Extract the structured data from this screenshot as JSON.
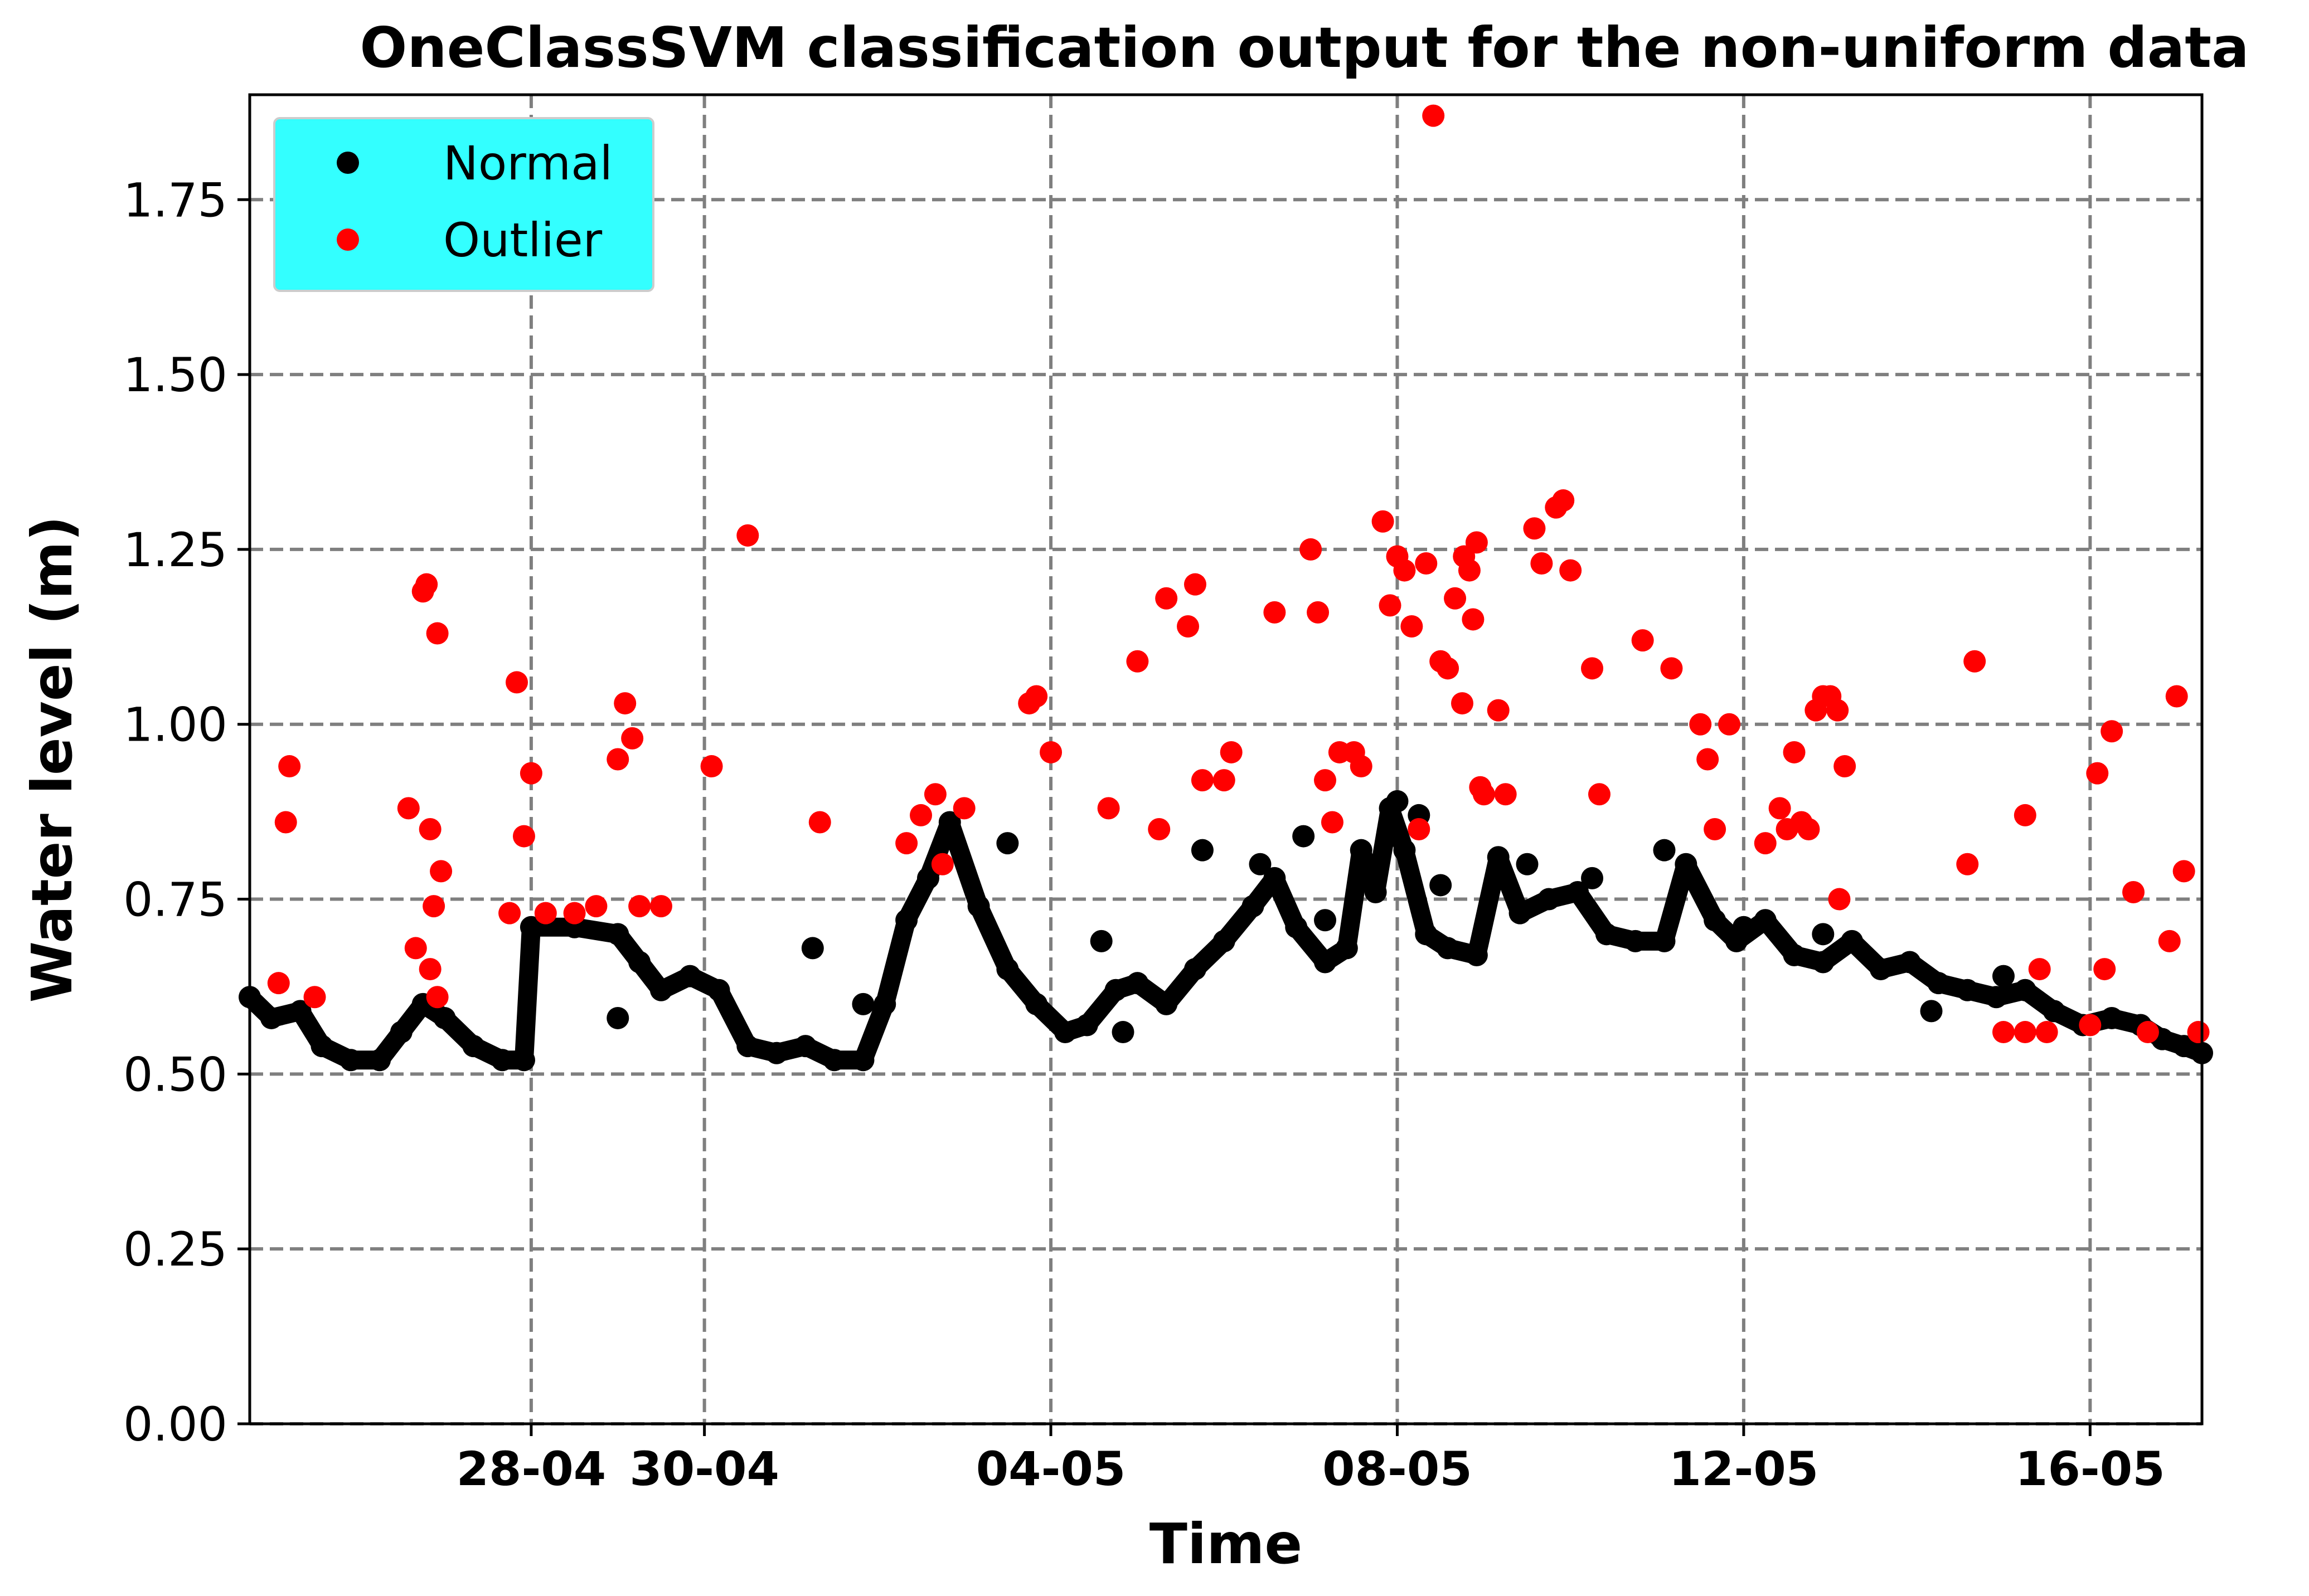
{
  "chart_data": {
    "type": "scatter",
    "title": "OneClassSVM classification output for the non-uniform data",
    "xlabel": "Time",
    "ylabel": "Water level (m)",
    "x_unit": "date (day of year 2019-like, Apr–May)",
    "xlim": [
      "2000-04-24T18:00",
      "2000-05-17T07:00"
    ],
    "ylim": [
      0.0,
      1.9
    ],
    "yticks": [
      "0.00",
      "0.25",
      "0.50",
      "0.75",
      "1.00",
      "1.25",
      "1.50",
      "1.75"
    ],
    "ytick_values": [
      0.0,
      0.25,
      0.5,
      0.75,
      1.0,
      1.25,
      1.5,
      1.75
    ],
    "xticks": [
      "28-04",
      "30-04",
      "04-05",
      "08-05",
      "12-05",
      "16-05"
    ],
    "xtick_values": [
      "2000-04-28",
      "2000-04-30",
      "2000-05-04",
      "2000-05-08",
      "2000-05-12",
      "2000-05-16"
    ],
    "grid": true,
    "grid_style": "dashed",
    "legend_position": "top-left",
    "legend_background": "#33ffff",
    "series": [
      {
        "name": "Normal",
        "color": "#000000",
        "style": "dense-trace",
        "points": [
          [
            "2000-04-24T18:00",
            0.61
          ],
          [
            "2000-04-25T00:00",
            0.58
          ],
          [
            "2000-04-25T08:00",
            0.59
          ],
          [
            "2000-04-25T14:00",
            0.54
          ],
          [
            "2000-04-25T22:00",
            0.52
          ],
          [
            "2000-04-26T06:00",
            0.52
          ],
          [
            "2000-04-26T12:00",
            0.56
          ],
          [
            "2000-04-26T18:00",
            0.6
          ],
          [
            "2000-04-27T00:00",
            0.58
          ],
          [
            "2000-04-27T08:00",
            0.54
          ],
          [
            "2000-04-27T16:00",
            0.52
          ],
          [
            "2000-04-27T22:00",
            0.52
          ],
          [
            "2000-04-28T00:00",
            0.71
          ],
          [
            "2000-04-28T12:00",
            0.71
          ],
          [
            "2000-04-29T00:00",
            0.7
          ],
          [
            "2000-04-29T06:00",
            0.66
          ],
          [
            "2000-04-29T12:00",
            0.62
          ],
          [
            "2000-04-29T20:00",
            0.64
          ],
          [
            "2000-04-30T04:00",
            0.62
          ],
          [
            "2000-04-30T12:00",
            0.54
          ],
          [
            "2000-04-30T20:00",
            0.53
          ],
          [
            "2000-05-01T04:00",
            0.54
          ],
          [
            "2000-05-01T12:00",
            0.52
          ],
          [
            "2000-05-01T20:00",
            0.52
          ],
          [
            "2000-05-02T02:00",
            0.6
          ],
          [
            "2000-05-02T08:00",
            0.72
          ],
          [
            "2000-05-02T14:00",
            0.78
          ],
          [
            "2000-05-02T20:00",
            0.86
          ],
          [
            "2000-05-03T04:00",
            0.74
          ],
          [
            "2000-05-03T12:00",
            0.65
          ],
          [
            "2000-05-03T20:00",
            0.6
          ],
          [
            "2000-05-04T04:00",
            0.56
          ],
          [
            "2000-05-04T10:00",
            0.57
          ],
          [
            "2000-05-04T18:00",
            0.62
          ],
          [
            "2000-05-05T00:00",
            0.63
          ],
          [
            "2000-05-05T08:00",
            0.6
          ],
          [
            "2000-05-05T16:00",
            0.65
          ],
          [
            "2000-05-06T00:00",
            0.69
          ],
          [
            "2000-05-06T08:00",
            0.74
          ],
          [
            "2000-05-06T14:00",
            0.78
          ],
          [
            "2000-05-06T20:00",
            0.71
          ],
          [
            "2000-05-07T04:00",
            0.66
          ],
          [
            "2000-05-07T10:00",
            0.68
          ],
          [
            "2000-05-07T14:00",
            0.82
          ],
          [
            "2000-05-07T18:00",
            0.76
          ],
          [
            "2000-05-07T22:00",
            0.88
          ],
          [
            "2000-05-08T02:00",
            0.82
          ],
          [
            "2000-05-08T08:00",
            0.7
          ],
          [
            "2000-05-08T14:00",
            0.68
          ],
          [
            "2000-05-08T22:00",
            0.67
          ],
          [
            "2000-05-09T04:00",
            0.81
          ],
          [
            "2000-05-09T10:00",
            0.73
          ],
          [
            "2000-05-09T18:00",
            0.75
          ],
          [
            "2000-05-10T02:00",
            0.76
          ],
          [
            "2000-05-10T10:00",
            0.7
          ],
          [
            "2000-05-10T18:00",
            0.69
          ],
          [
            "2000-05-11T02:00",
            0.69
          ],
          [
            "2000-05-11T08:00",
            0.8
          ],
          [
            "2000-05-11T16:00",
            0.72
          ],
          [
            "2000-05-11T22:00",
            0.69
          ],
          [
            "2000-05-12T06:00",
            0.72
          ],
          [
            "2000-05-12T14:00",
            0.67
          ],
          [
            "2000-05-12T22:00",
            0.66
          ],
          [
            "2000-05-13T06:00",
            0.69
          ],
          [
            "2000-05-13T14:00",
            0.65
          ],
          [
            "2000-05-13T22:00",
            0.66
          ],
          [
            "2000-05-14T06:00",
            0.63
          ],
          [
            "2000-05-14T14:00",
            0.62
          ],
          [
            "2000-05-14T22:00",
            0.61
          ],
          [
            "2000-05-15T06:00",
            0.62
          ],
          [
            "2000-05-15T14:00",
            0.59
          ],
          [
            "2000-05-15T22:00",
            0.57
          ],
          [
            "2000-05-16T06:00",
            0.58
          ],
          [
            "2000-05-16T14:00",
            0.57
          ],
          [
            "2000-05-16T20:00",
            0.55
          ],
          [
            "2000-05-17T02:00",
            0.54
          ],
          [
            "2000-05-17T07:00",
            0.53
          ]
        ],
        "scattered": [
          [
            "2000-04-29T00:00",
            0.58
          ],
          [
            "2000-05-01T06:00",
            0.68
          ],
          [
            "2000-05-01T20:00",
            0.6
          ],
          [
            "2000-05-03T12:00",
            0.83
          ],
          [
            "2000-05-04T14:00",
            0.69
          ],
          [
            "2000-05-04T20:00",
            0.56
          ],
          [
            "2000-05-05T18:00",
            0.82
          ],
          [
            "2000-05-06T10:00",
            0.8
          ],
          [
            "2000-05-06T22:00",
            0.84
          ],
          [
            "2000-05-07T04:00",
            0.72
          ],
          [
            "2000-05-08T00:00",
            0.89
          ],
          [
            "2000-05-08T06:00",
            0.87
          ],
          [
            "2000-05-08T12:00",
            0.77
          ],
          [
            "2000-05-09T12:00",
            0.8
          ],
          [
            "2000-05-10T06:00",
            0.78
          ],
          [
            "2000-05-11T02:00",
            0.82
          ],
          [
            "2000-05-12T00:00",
            0.71
          ],
          [
            "2000-05-12T22:00",
            0.7
          ],
          [
            "2000-05-14T04:00",
            0.59
          ],
          [
            "2000-05-15T00:00",
            0.64
          ]
        ]
      },
      {
        "name": "Outlier",
        "color": "#ff0000",
        "points": [
          [
            "2000-04-25T02:00",
            0.63
          ],
          [
            "2000-04-25T04:00",
            0.86
          ],
          [
            "2000-04-25T05:00",
            0.94
          ],
          [
            "2000-04-25T12:00",
            0.61
          ],
          [
            "2000-04-26T14:00",
            0.88
          ],
          [
            "2000-04-26T16:00",
            0.68
          ],
          [
            "2000-04-26T18:00",
            1.19
          ],
          [
            "2000-04-26T19:00",
            1.2
          ],
          [
            "2000-04-26T20:00",
            0.85
          ],
          [
            "2000-04-26T21:00",
            0.74
          ],
          [
            "2000-04-26T22:00",
            1.13
          ],
          [
            "2000-04-26T23:00",
            0.79
          ],
          [
            "2000-04-26T20:00",
            0.65
          ],
          [
            "2000-04-26T22:00",
            0.61
          ],
          [
            "2000-04-27T18:00",
            0.73
          ],
          [
            "2000-04-27T20:00",
            1.06
          ],
          [
            "2000-04-27T22:00",
            0.84
          ],
          [
            "2000-04-28T00:00",
            0.93
          ],
          [
            "2000-04-28T04:00",
            0.73
          ],
          [
            "2000-04-28T12:00",
            0.73
          ],
          [
            "2000-04-28T18:00",
            0.74
          ],
          [
            "2000-04-29T00:00",
            0.95
          ],
          [
            "2000-04-29T02:00",
            1.03
          ],
          [
            "2000-04-29T04:00",
            0.98
          ],
          [
            "2000-04-29T06:00",
            0.74
          ],
          [
            "2000-04-29T12:00",
            0.74
          ],
          [
            "2000-04-30T02:00",
            0.94
          ],
          [
            "2000-04-30T12:00",
            1.27
          ],
          [
            "2000-05-01T08:00",
            0.86
          ],
          [
            "2000-05-02T08:00",
            0.83
          ],
          [
            "2000-05-02T12:00",
            0.87
          ],
          [
            "2000-05-02T16:00",
            0.9
          ],
          [
            "2000-05-02T18:00",
            0.8
          ],
          [
            "2000-05-03T00:00",
            0.88
          ],
          [
            "2000-05-03T18:00",
            1.03
          ],
          [
            "2000-05-03T20:00",
            1.04
          ],
          [
            "2000-05-04T00:00",
            0.96
          ],
          [
            "2000-05-04T16:00",
            0.88
          ],
          [
            "2000-05-05T00:00",
            1.09
          ],
          [
            "2000-05-05T06:00",
            0.85
          ],
          [
            "2000-05-05T08:00",
            1.18
          ],
          [
            "2000-05-05T14:00",
            1.14
          ],
          [
            "2000-05-05T16:00",
            1.2
          ],
          [
            "2000-05-05T18:00",
            0.92
          ],
          [
            "2000-05-06T00:00",
            0.92
          ],
          [
            "2000-05-06T02:00",
            0.96
          ],
          [
            "2000-05-06T14:00",
            1.16
          ],
          [
            "2000-05-07T00:00",
            1.25
          ],
          [
            "2000-05-07T02:00",
            1.16
          ],
          [
            "2000-05-07T04:00",
            0.92
          ],
          [
            "2000-05-07T06:00",
            0.86
          ],
          [
            "2000-05-07T08:00",
            0.96
          ],
          [
            "2000-05-07T12:00",
            0.96
          ],
          [
            "2000-05-07T14:00",
            0.94
          ],
          [
            "2000-05-07T20:00",
            1.29
          ],
          [
            "2000-05-07T22:00",
            1.17
          ],
          [
            "2000-05-08T00:00",
            1.24
          ],
          [
            "2000-05-08T02:00",
            1.22
          ],
          [
            "2000-05-08T04:00",
            1.14
          ],
          [
            "2000-05-08T06:00",
            0.85
          ],
          [
            "2000-05-08T08:00",
            1.23
          ],
          [
            "2000-05-08T10:00",
            1.87
          ],
          [
            "2000-05-08T12:00",
            1.09
          ],
          [
            "2000-05-08T14:00",
            1.08
          ],
          [
            "2000-05-08T16:00",
            1.18
          ],
          [
            "2000-05-08T18:00",
            1.03
          ],
          [
            "2000-05-08T18:30",
            1.24
          ],
          [
            "2000-05-08T20:00",
            1.22
          ],
          [
            "2000-05-08T21:00",
            1.15
          ],
          [
            "2000-05-08T22:00",
            1.26
          ],
          [
            "2000-05-08T23:00",
            0.91
          ],
          [
            "2000-05-09T00:00",
            0.9
          ],
          [
            "2000-05-09T04:00",
            1.02
          ],
          [
            "2000-05-09T06:00",
            0.9
          ],
          [
            "2000-05-09T14:00",
            1.28
          ],
          [
            "2000-05-09T16:00",
            1.23
          ],
          [
            "2000-05-09T20:00",
            1.31
          ],
          [
            "2000-05-09T22:00",
            1.32
          ],
          [
            "2000-05-10T00:00",
            1.22
          ],
          [
            "2000-05-10T06:00",
            1.08
          ],
          [
            "2000-05-10T08:00",
            0.9
          ],
          [
            "2000-05-10T20:00",
            1.12
          ],
          [
            "2000-05-11T04:00",
            1.08
          ],
          [
            "2000-05-11T12:00",
            1.0
          ],
          [
            "2000-05-11T14:00",
            0.95
          ],
          [
            "2000-05-11T16:00",
            0.85
          ],
          [
            "2000-05-11T20:00",
            1.0
          ],
          [
            "2000-05-12T06:00",
            0.83
          ],
          [
            "2000-05-12T10:00",
            0.88
          ],
          [
            "2000-05-12T12:00",
            0.85
          ],
          [
            "2000-05-12T14:00",
            0.96
          ],
          [
            "2000-05-12T16:00",
            0.86
          ],
          [
            "2000-05-12T18:00",
            0.85
          ],
          [
            "2000-05-12T20:00",
            1.02
          ],
          [
            "2000-05-12T22:00",
            1.04
          ],
          [
            "2000-05-13T00:00",
            1.04
          ],
          [
            "2000-05-13T02:00",
            1.02
          ],
          [
            "2000-05-13T04:00",
            0.94
          ],
          [
            "2000-05-13T02:30",
            0.75
          ],
          [
            "2000-05-14T14:00",
            0.8
          ],
          [
            "2000-05-14T16:00",
            1.09
          ],
          [
            "2000-05-15T06:00",
            0.87
          ],
          [
            "2000-05-15T10:00",
            0.65
          ],
          [
            "2000-05-16T02:00",
            0.93
          ],
          [
            "2000-05-16T12:00",
            0.76
          ],
          [
            "2000-05-17T00:00",
            1.04
          ],
          [
            "2000-05-17T02:00",
            0.79
          ],
          [
            "2000-05-16T22:00",
            0.69
          ],
          [
            "2000-05-17T06:00",
            0.56
          ],
          [
            "2000-05-15T00:00",
            0.56
          ],
          [
            "2000-05-15T06:00",
            0.56
          ],
          [
            "2000-05-15T12:00",
            0.56
          ],
          [
            "2000-05-16T00:00",
            0.57
          ],
          [
            "2000-05-16T04:00",
            0.65
          ],
          [
            "2000-05-16T06:00",
            0.99
          ],
          [
            "2000-05-16T16:00",
            0.56
          ]
        ]
      }
    ]
  }
}
